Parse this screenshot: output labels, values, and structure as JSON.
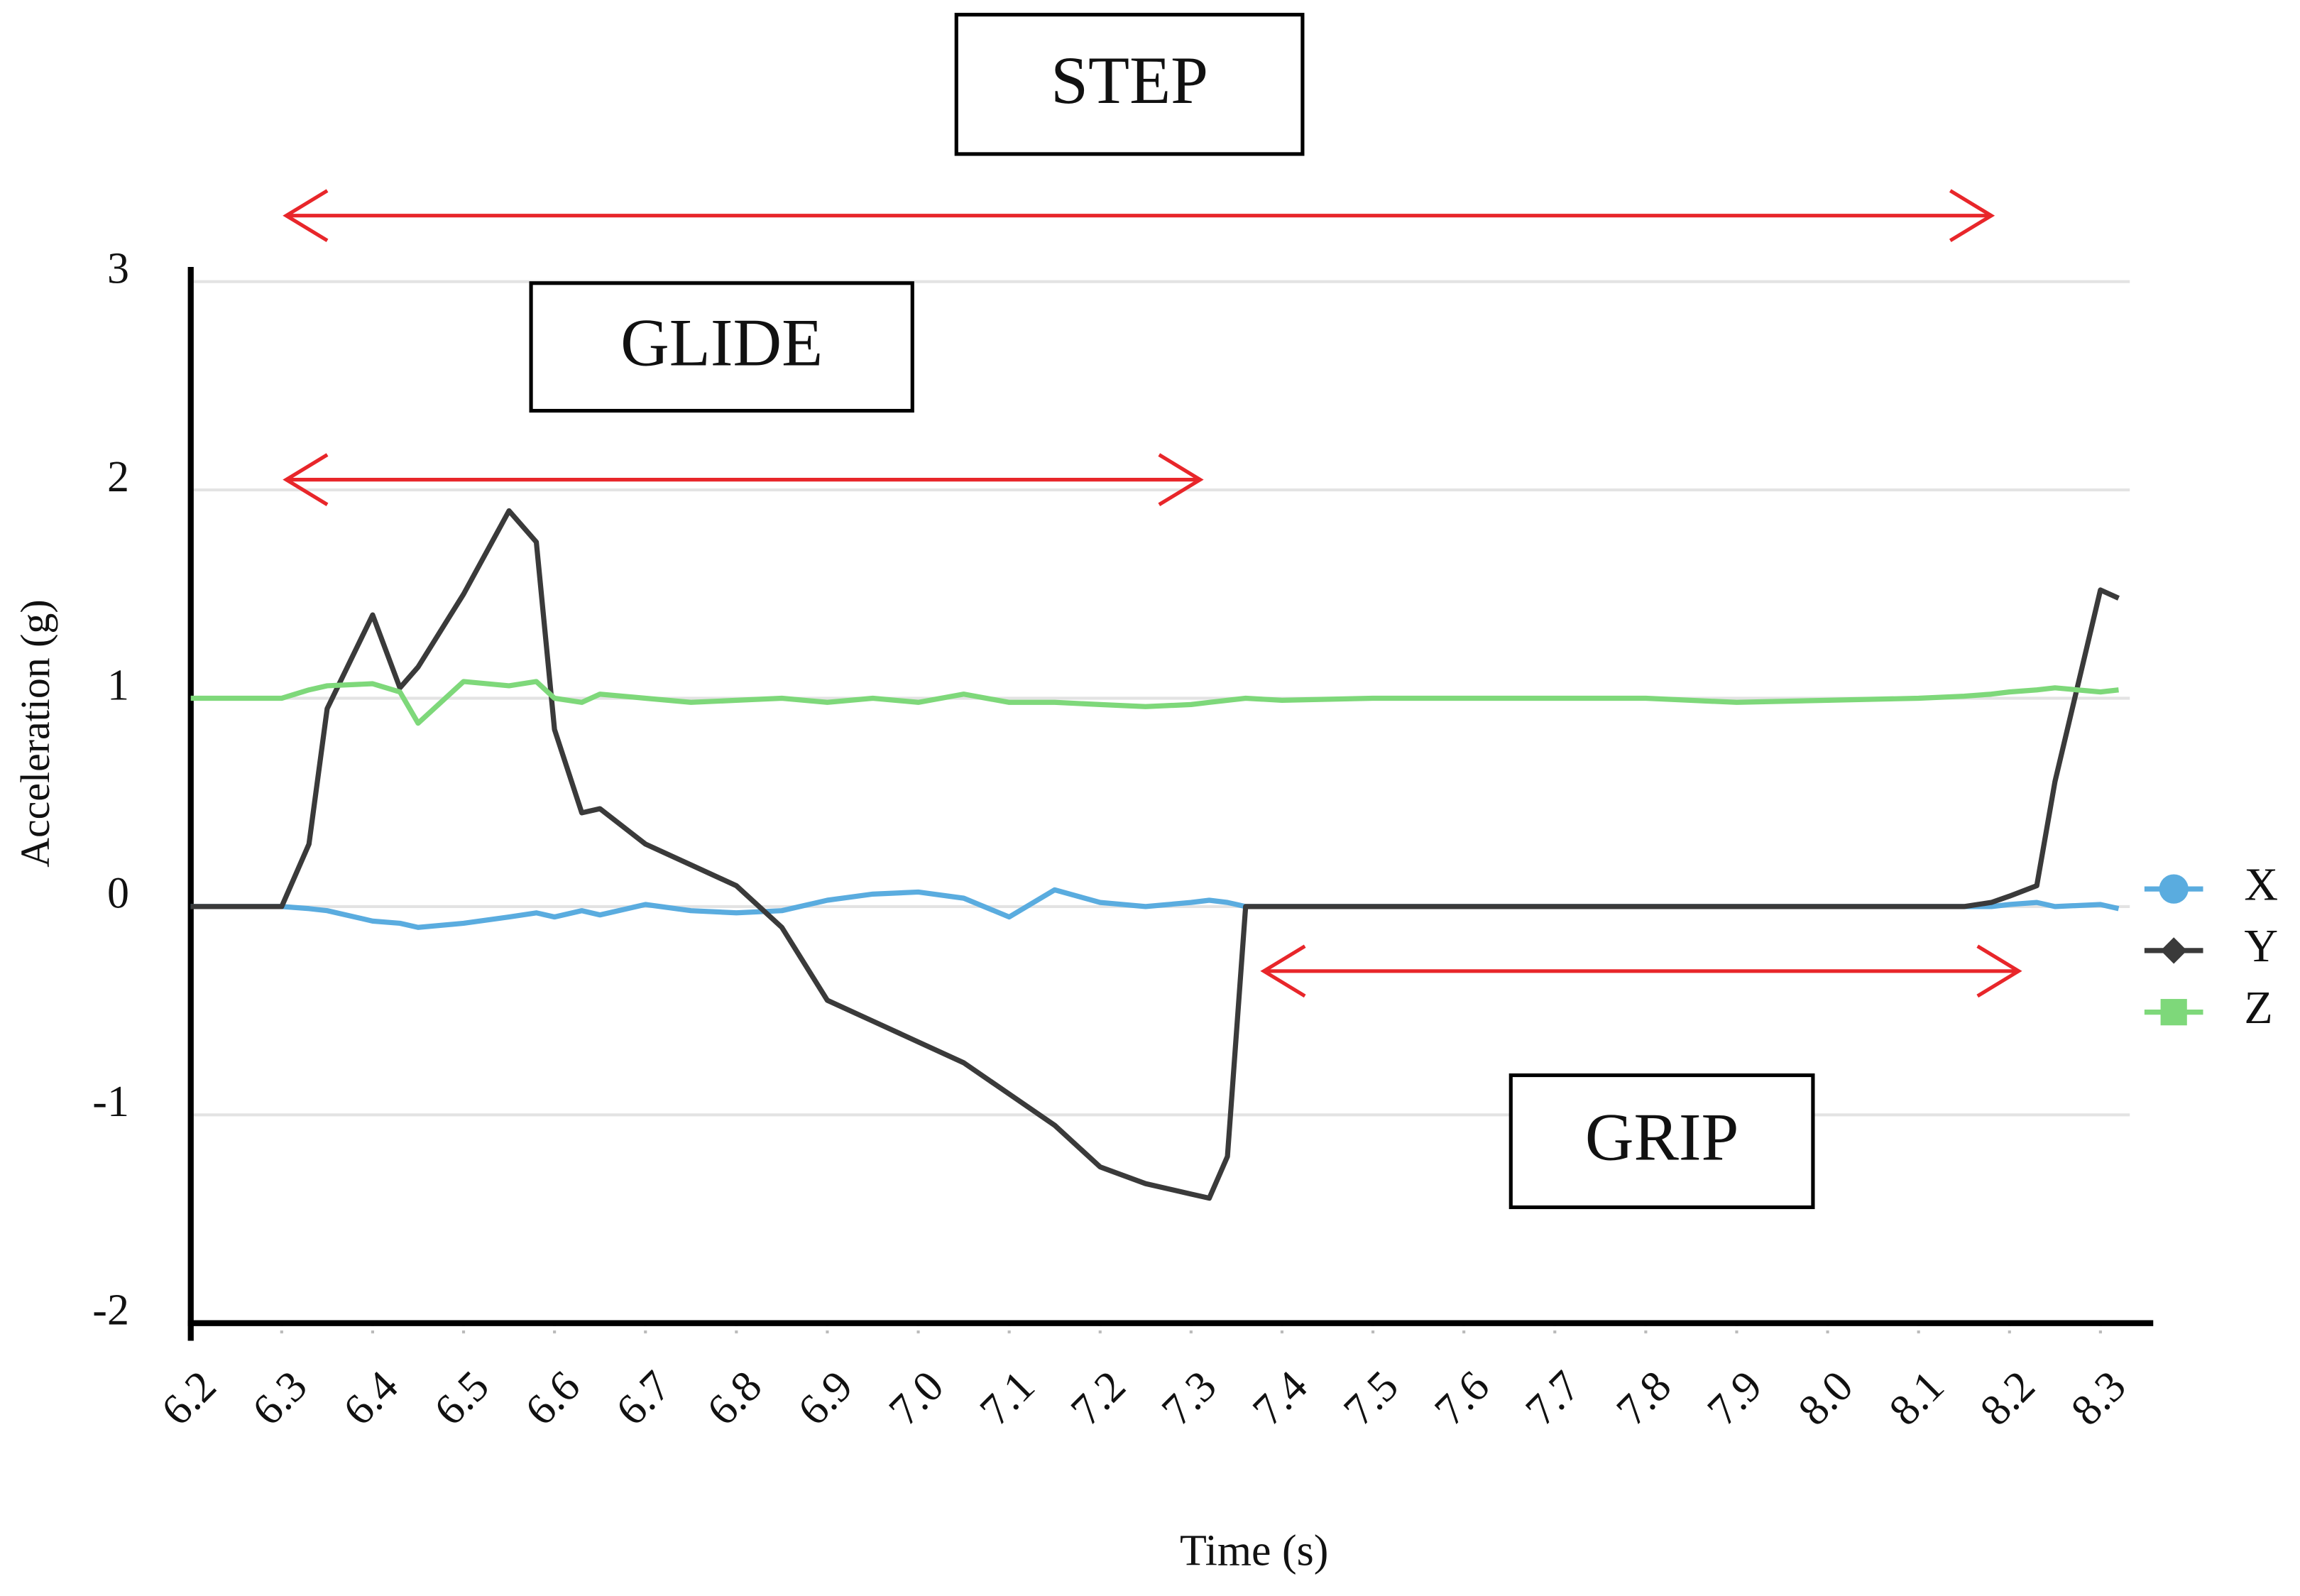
{
  "chart_data": {
    "type": "line",
    "xlabel": "Time (s)",
    "ylabel": "Acceleration (g)",
    "x": [
      6.2,
      6.25,
      6.3,
      6.33,
      6.35,
      6.4,
      6.43,
      6.45,
      6.5,
      6.55,
      6.58,
      6.6,
      6.63,
      6.65,
      6.7,
      6.75,
      6.8,
      6.85,
      6.9,
      6.95,
      7.0,
      7.05,
      7.1,
      7.15,
      7.2,
      7.25,
      7.3,
      7.32,
      7.34,
      7.36,
      7.4,
      7.5,
      7.6,
      7.7,
      7.8,
      7.9,
      8.0,
      8.1,
      8.15,
      8.18,
      8.2,
      8.23,
      8.25,
      8.3,
      8.32
    ],
    "series": [
      {
        "name": "X",
        "color": "#5aacdf",
        "marker": "circle",
        "values": [
          0,
          0,
          0,
          -0.01,
          -0.02,
          -0.07,
          -0.08,
          -0.1,
          -0.08,
          -0.05,
          -0.03,
          -0.05,
          -0.02,
          -0.04,
          0.01,
          -0.02,
          -0.03,
          -0.02,
          0.03,
          0.06,
          0.07,
          0.04,
          -0.05,
          0.08,
          0.02,
          0.0,
          0.02,
          0.03,
          0.02,
          0.0,
          0,
          0,
          0,
          0,
          0,
          0,
          0,
          0,
          0,
          0,
          0.01,
          0.02,
          0.0,
          0.01,
          -0.01
        ]
      },
      {
        "name": "Y",
        "color": "#3a3a3a",
        "marker": "diamond",
        "values": [
          0,
          0,
          0,
          0.3,
          0.95,
          1.4,
          1.05,
          1.15,
          1.5,
          1.9,
          1.75,
          0.85,
          0.45,
          0.47,
          0.3,
          0.2,
          0.1,
          -0.1,
          -0.45,
          -0.55,
          -0.65,
          -0.75,
          -0.9,
          -1.05,
          -1.25,
          -1.33,
          -1.38,
          -1.4,
          -1.2,
          0,
          0,
          0,
          0,
          0,
          0,
          0,
          0,
          0,
          0,
          0.02,
          0.05,
          0.1,
          0.6,
          1.52,
          1.48
        ]
      },
      {
        "name": "Z",
        "color": "#7ed87a",
        "marker": "square",
        "values": [
          1.0,
          1.0,
          1.0,
          1.04,
          1.06,
          1.07,
          1.03,
          0.88,
          1.08,
          1.06,
          1.08,
          1.0,
          0.98,
          1.02,
          1.0,
          0.98,
          0.99,
          1.0,
          0.98,
          1.0,
          0.98,
          1.02,
          0.98,
          0.98,
          0.97,
          0.96,
          0.97,
          0.98,
          0.99,
          1.0,
          0.99,
          1.0,
          1.0,
          1.0,
          1.0,
          0.98,
          0.99,
          1.0,
          1.01,
          1.02,
          1.03,
          1.04,
          1.05,
          1.03,
          1.04
        ]
      }
    ],
    "xlim": [
      6.2,
      8.3
    ],
    "ylim": [
      -2,
      3
    ],
    "xticks": [
      6.2,
      6.3,
      6.4,
      6.5,
      6.6,
      6.7,
      6.8,
      6.9,
      {
        "value": 7,
        "label": "7.0"
      },
      7.1,
      7.2,
      7.3,
      7.4,
      7.5,
      7.6,
      7.7,
      7.8,
      7.9,
      {
        "value": 8,
        "label": "8.0"
      },
      8.1,
      8.2,
      8.3
    ],
    "yticks": [
      -2,
      -1,
      0,
      1,
      2,
      3
    ],
    "grid": true,
    "legend": "right",
    "annotations": [
      {
        "text": "STEP",
        "start": 6.305,
        "end": 8.18,
        "color": "#e8262a"
      },
      {
        "text": "GLIDE",
        "start": 6.305,
        "end": 7.31,
        "color": "#e8262a"
      },
      {
        "text": "GRIP",
        "start": 7.38,
        "end": 8.21,
        "color": "#e8262a"
      }
    ]
  }
}
